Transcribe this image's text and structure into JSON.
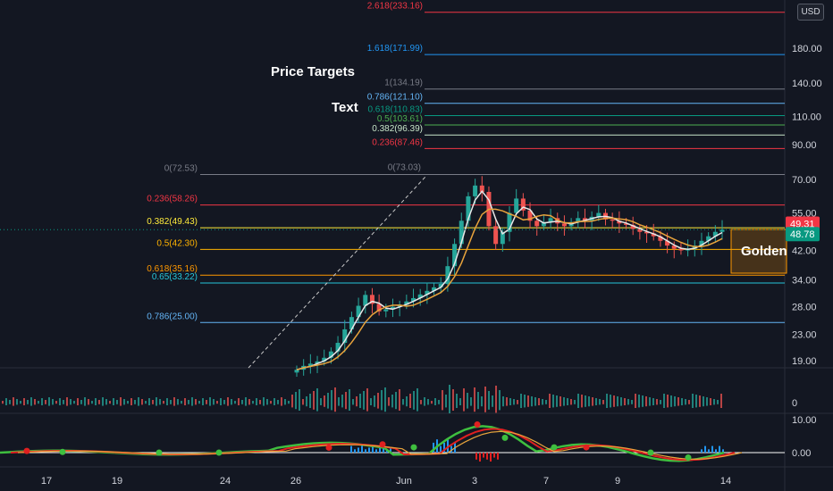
{
  "currency_button": "USD",
  "annotations": [
    "Price Targets",
    "Text",
    "Golden"
  ],
  "price_labels": {
    "upper": {
      "text": "49.31",
      "color": "#f23645"
    },
    "current": {
      "text": "48.78",
      "color": "#089981"
    }
  },
  "colors": {
    "background": "#131722",
    "up_candle": "#26a69a",
    "down_candle": "#ef5350",
    "ma_white": "#e8e8e8",
    "ma_orange": "#e8a33c",
    "osc_green": "#3fbf3f",
    "osc_red": "#e02020",
    "osc_orange": "#e8a33c",
    "hist_blue": "#2196f3"
  },
  "chart_data": [
    {
      "type": "candlestick",
      "scale": "log",
      "y_ticks": [
        "180.00",
        "140.00",
        "110.00",
        "90.00",
        "70.00",
        "55.00",
        "42.00",
        "34.00",
        "28.00",
        "23.00",
        "19.00"
      ],
      "y_tick_values": [
        180,
        140,
        110,
        90,
        70,
        55,
        42,
        34,
        28,
        23,
        19
      ],
      "top_clipped_tick": "2",
      "x_ticks": [
        "17",
        "19",
        "24",
        "26",
        "Jun",
        "3",
        "7",
        "9",
        "14"
      ],
      "fib_levels_upper": [
        {
          "label": "2.618(233.16)",
          "value": 233.16,
          "color": "#f23645"
        },
        {
          "label": "1.618(171.99)",
          "value": 171.99,
          "color": "#2196f3"
        },
        {
          "label": "1(134.19)",
          "value": 134.19,
          "color": "#787b86"
        },
        {
          "label": "0.786(121.10)",
          "value": 121.1,
          "color": "#64b5f6"
        },
        {
          "label": "0.618(110.83)",
          "value": 110.83,
          "color": "#089981"
        },
        {
          "label": "0.5(103.61)",
          "value": 103.61,
          "color": "#4caf50"
        },
        {
          "label": "0.382(96.39)",
          "value": 96.39,
          "color": "#c8e6c9"
        },
        {
          "label": "0.236(87.46)",
          "value": 87.46,
          "color": "#f23645"
        }
      ],
      "fib_levels_lower": [
        {
          "label": "0(72.53)",
          "value": 72.53,
          "color": "#787b86"
        },
        {
          "label": "0.236(58.26)",
          "value": 58.26,
          "color": "#f23645"
        },
        {
          "label": "0.382(49.43)",
          "value": 49.43,
          "color": "#ffeb3b"
        },
        {
          "label": "0.5(42.30)",
          "value": 42.3,
          "color": "#ffb300"
        },
        {
          "label": "0.618(35.16)",
          "value": 35.16,
          "color": "#ff9800"
        },
        {
          "label": "0.65(33.22)",
          "value": 33.22,
          "color": "#26c6da"
        },
        {
          "label": "0.786(25.00)",
          "value": 25.0,
          "color": "#64b5f6"
        }
      ],
      "fib_extra_label": {
        "label": "0(73.03)",
        "value": 73.03,
        "color": "#787b86"
      },
      "price_series": [
        [
          "May 26",
          17.8
        ],
        [
          "",
          18.3
        ],
        [
          "",
          18.6
        ],
        [
          "",
          18.9
        ],
        [
          "",
          19.4
        ],
        [
          "",
          20.3
        ],
        [
          "",
          21.6
        ],
        [
          "",
          23.8
        ],
        [
          "",
          26.0
        ],
        [
          "",
          28.2
        ],
        [
          "",
          30.5
        ],
        [
          "",
          28.6
        ],
        [
          "",
          27.1
        ],
        [
          "",
          27.5
        ],
        [
          "",
          28.0
        ],
        [
          "",
          28.4
        ],
        [
          "",
          29.1
        ],
        [
          "",
          29.8
        ],
        [
          "",
          30.6
        ],
        [
          "",
          31.4
        ],
        [
          "Jun",
          32.2
        ],
        [
          "",
          33.0
        ],
        [
          "",
          37.5
        ],
        [
          "",
          44.0
        ],
        [
          "",
          52.0
        ],
        [
          "",
          62.0
        ],
        [
          "",
          67.0
        ],
        [
          "",
          64.0
        ],
        [
          "",
          50.0
        ],
        [
          "",
          44.0
        ],
        [
          "",
          48.0
        ],
        [
          "3",
          55.0
        ],
        [
          "",
          61.0
        ],
        [
          "",
          56.0
        ],
        [
          "",
          52.0
        ],
        [
          "",
          50.0
        ],
        [
          "",
          51.5
        ],
        [
          "",
          53.0
        ],
        [
          "",
          51.0
        ],
        [
          "",
          50.0
        ],
        [
          "7",
          51.5
        ],
        [
          "",
          53.0
        ],
        [
          "",
          52.0
        ],
        [
          "",
          53.5
        ],
        [
          "",
          55.0
        ],
        [
          "",
          52.5
        ],
        [
          "",
          52.0
        ],
        [
          "",
          51.0
        ],
        [
          "",
          50.5
        ],
        [
          "",
          49.0
        ],
        [
          "9",
          48.0
        ],
        [
          "",
          47.5
        ],
        [
          "",
          46.5
        ],
        [
          "",
          45.0
        ],
        [
          "",
          43.5
        ],
        [
          "",
          42.5
        ],
        [
          "",
          42.0
        ],
        [
          "",
          42.5
        ],
        [
          "",
          43.5
        ],
        [
          "",
          45.0
        ],
        [
          "14",
          46.5
        ],
        [
          "",
          48.0
        ],
        [
          "",
          48.8
        ]
      ]
    },
    {
      "type": "bar",
      "name": "volume",
      "y_ticks": [
        "0"
      ]
    },
    {
      "type": "line",
      "name": "oscillator",
      "y_ticks": [
        "10.00",
        "0.00"
      ],
      "ylim": [
        -2,
        12
      ]
    }
  ]
}
